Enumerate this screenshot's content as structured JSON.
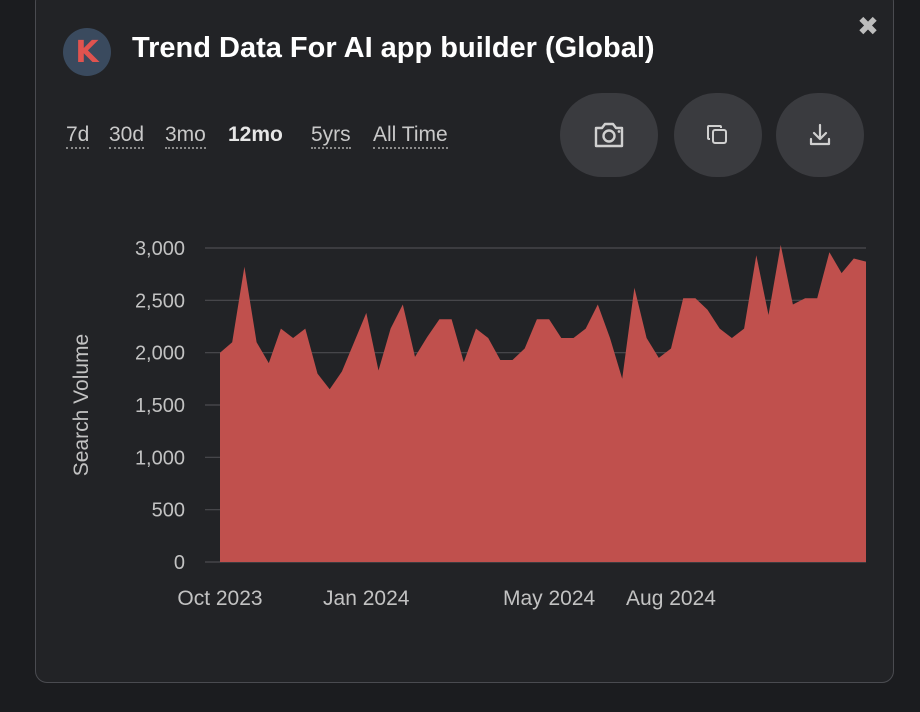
{
  "header": {
    "logo_letter": "K",
    "title": "Trend Data For AI app builder (Global)",
    "close_symbol": "✖"
  },
  "time_ranges": [
    {
      "label": "7d",
      "active": false
    },
    {
      "label": "30d",
      "active": false
    },
    {
      "label": "3mo",
      "active": false
    },
    {
      "label": "12mo",
      "active": true
    },
    {
      "label": "5yrs",
      "active": false
    },
    {
      "label": "All Time",
      "active": false
    }
  ],
  "actions": [
    {
      "name": "screenshot-button",
      "icon": "camera-icon"
    },
    {
      "name": "copy-button",
      "icon": "copy-icon"
    },
    {
      "name": "download-button",
      "icon": "download-icon"
    }
  ],
  "colors": {
    "area_fill": "#c0504d",
    "grid": "#4b4c50",
    "accent": "#e0534f"
  },
  "chart_data": {
    "type": "area",
    "ylabel": "Search Volume",
    "ylim": [
      0,
      3000
    ],
    "yticks": [
      "0",
      "500",
      "1,000",
      "1,500",
      "2,000",
      "2,500",
      "3,000"
    ],
    "xtick_labels": [
      "Oct 2023",
      "Jan 2024",
      "May 2024",
      "Aug 2024"
    ],
    "xtick_index": [
      0,
      12,
      27,
      37
    ],
    "grid": "horizontal",
    "series": [
      {
        "values": [
          2000,
          2100,
          2820,
          2100,
          1900,
          2230,
          2140,
          2230,
          1800,
          1650,
          1820,
          2100,
          2380,
          1830,
          2230,
          2460,
          1960,
          2150,
          2320,
          2320,
          1910,
          2230,
          2140,
          1930,
          1930,
          2040,
          2320,
          2320,
          2140,
          2140,
          2230,
          2460,
          2140,
          1750,
          2620,
          2140,
          1950,
          2040,
          2520,
          2520,
          2410,
          2230,
          2140,
          2230,
          2930,
          2360,
          3030,
          2460,
          2520,
          2520,
          2960,
          2760,
          2900,
          2870
        ]
      }
    ]
  }
}
